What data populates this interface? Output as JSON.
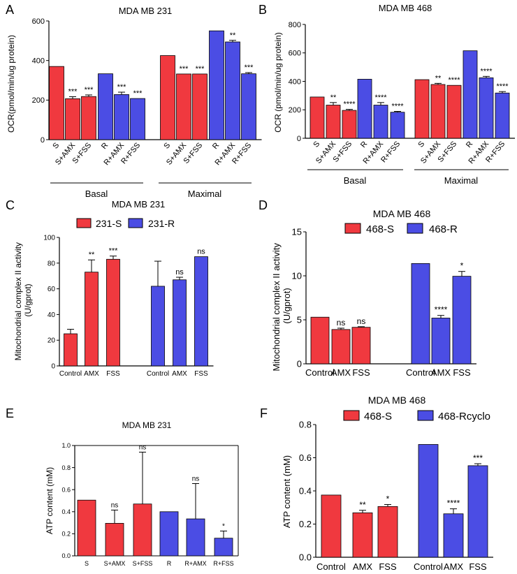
{
  "colors": {
    "red": "#f0393f",
    "blue": "#4b4de4",
    "axis": "#000000",
    "error": "#000000"
  },
  "chart_data": [
    {
      "id": "A",
      "panel_label": "A",
      "type": "bar",
      "title": "MDA MB 231",
      "ylabel": "OCR(pmol/min/ug protein)",
      "ylim": [
        0,
        600
      ],
      "yticks": [
        "0",
        "200",
        "400",
        "600"
      ],
      "categories": [
        "S",
        "S+AMX",
        "S+FSS",
        "R",
        "R+AMX",
        "R+FSS",
        "S",
        "S+AMX",
        "S+FSS",
        "R",
        "R+AMX",
        "R+FSS"
      ],
      "values": [
        370,
        207,
        218,
        333,
        228,
        208,
        425,
        332,
        332,
        550,
        494,
        333
      ],
      "errors": [
        0,
        10,
        8,
        0,
        12,
        0,
        0,
        0,
        0,
        0,
        8,
        6
      ],
      "series_color": [
        "red",
        "red",
        "red",
        "blue",
        "blue",
        "blue",
        "red",
        "red",
        "red",
        "blue",
        "blue",
        "blue"
      ],
      "significance": [
        "",
        "***",
        "***",
        "",
        "***",
        "***",
        "",
        "***",
        "***",
        "",
        "**",
        "***"
      ],
      "groups": [
        "Basal",
        "Maximal"
      ]
    },
    {
      "id": "B",
      "panel_label": "B",
      "type": "bar",
      "title": "MDA MB 468",
      "ylabel": "OCR (pmol/min/ug protein)",
      "ylim": [
        0,
        800
      ],
      "yticks": [
        "0",
        "200",
        "400",
        "600",
        "800"
      ],
      "categories": [
        "S",
        "S+AMX",
        "S+FSS",
        "R",
        "R+AMX",
        "R+FSS",
        "S",
        "S+AMX",
        "S+FSS",
        "R",
        "R+AMX",
        "R+FSS"
      ],
      "values": [
        290,
        233,
        196,
        415,
        233,
        183,
        412,
        378,
        372,
        615,
        425,
        318
      ],
      "errors": [
        0,
        18,
        7,
        0,
        18,
        6,
        0,
        8,
        0,
        0,
        10,
        10
      ],
      "series_color": [
        "red",
        "red",
        "red",
        "blue",
        "blue",
        "blue",
        "red",
        "red",
        "red",
        "blue",
        "blue",
        "blue"
      ],
      "significance": [
        "",
        "**",
        "****",
        "",
        "****",
        "****",
        "",
        "**",
        "****",
        "",
        "****",
        "****"
      ],
      "groups": [
        "Basal",
        "Maximal"
      ]
    },
    {
      "id": "C",
      "panel_label": "C",
      "type": "bar",
      "title": "MDA MB 231",
      "legend": [
        "231-S",
        "231-R"
      ],
      "ylabel": "Mitochondrial complex II activity\n(U/gprot)",
      "ylim": [
        0,
        100
      ],
      "yticks": [
        "0",
        "20",
        "40",
        "60",
        "80",
        "100"
      ],
      "categories": [
        "Control",
        "AMX",
        "FSS",
        "Control",
        "AMX",
        "FSS"
      ],
      "values": [
        25,
        73,
        83,
        62,
        67,
        85
      ],
      "errors": [
        3.5,
        9.5,
        2.5,
        19.5,
        2,
        0
      ],
      "series_color": [
        "red",
        "red",
        "red",
        "blue",
        "blue",
        "blue"
      ],
      "significance": [
        "",
        "**",
        "***",
        "",
        "ns",
        "ns"
      ]
    },
    {
      "id": "D",
      "panel_label": "D",
      "type": "bar",
      "title": "MDA MB 468",
      "legend": [
        "468-S",
        "468-R"
      ],
      "ylabel": "Mitochondrial complex II activity\n(U/gprot)",
      "ylim": [
        0,
        15
      ],
      "yticks": [
        "0",
        "5",
        "10",
        "15"
      ],
      "categories": [
        "Control",
        "AMX",
        "FSS",
        "Control",
        "AMX",
        "FSS"
      ],
      "values": [
        5.3,
        3.9,
        4.15,
        11.4,
        5.2,
        9.95
      ],
      "errors": [
        0,
        0.15,
        0.07,
        0,
        0.3,
        0.55
      ],
      "series_color": [
        "red",
        "red",
        "red",
        "blue",
        "blue",
        "blue"
      ],
      "significance": [
        "",
        "ns",
        "ns",
        "",
        "****",
        "*"
      ]
    },
    {
      "id": "E",
      "panel_label": "E",
      "type": "bar",
      "title": "MDA MB 231",
      "ylabel": "ATP content (mM)",
      "ylim": [
        0,
        1.0
      ],
      "yticks": [
        "0.0",
        "0.2",
        "0.4",
        "0.6",
        "0.8",
        "1.0"
      ],
      "categories": [
        "S",
        "S+AMX",
        "S+FSS",
        "R",
        "R+AMX",
        "R+FSS"
      ],
      "values": [
        0.505,
        0.295,
        0.47,
        0.4,
        0.335,
        0.16
      ],
      "errors": [
        0,
        0.12,
        0.47,
        0,
        0.32,
        0.065
      ],
      "series_color": [
        "red",
        "red",
        "red",
        "blue",
        "blue",
        "blue"
      ],
      "significance": [
        "",
        "ns",
        "ns",
        "",
        "ns",
        "*"
      ]
    },
    {
      "id": "F",
      "panel_label": "F",
      "type": "bar",
      "title": "MDA MB 468",
      "legend": [
        "468-S",
        "468-Rcyclo"
      ],
      "ylabel": "ATP content (mM)",
      "ylim": [
        0,
        0.8
      ],
      "yticks": [
        "0.0",
        "0.2",
        "0.4",
        "0.6",
        "0.8"
      ],
      "categories": [
        "Control",
        "AMX",
        "FSS",
        "Control",
        "AMX",
        "FSS"
      ],
      "values": [
        0.375,
        0.268,
        0.306,
        0.68,
        0.262,
        0.552
      ],
      "errors": [
        0,
        0.015,
        0.012,
        0,
        0.03,
        0.012
      ],
      "series_color": [
        "red",
        "red",
        "red",
        "blue",
        "blue",
        "blue"
      ],
      "significance": [
        "",
        "**",
        "*",
        "",
        "****",
        "***"
      ]
    }
  ]
}
